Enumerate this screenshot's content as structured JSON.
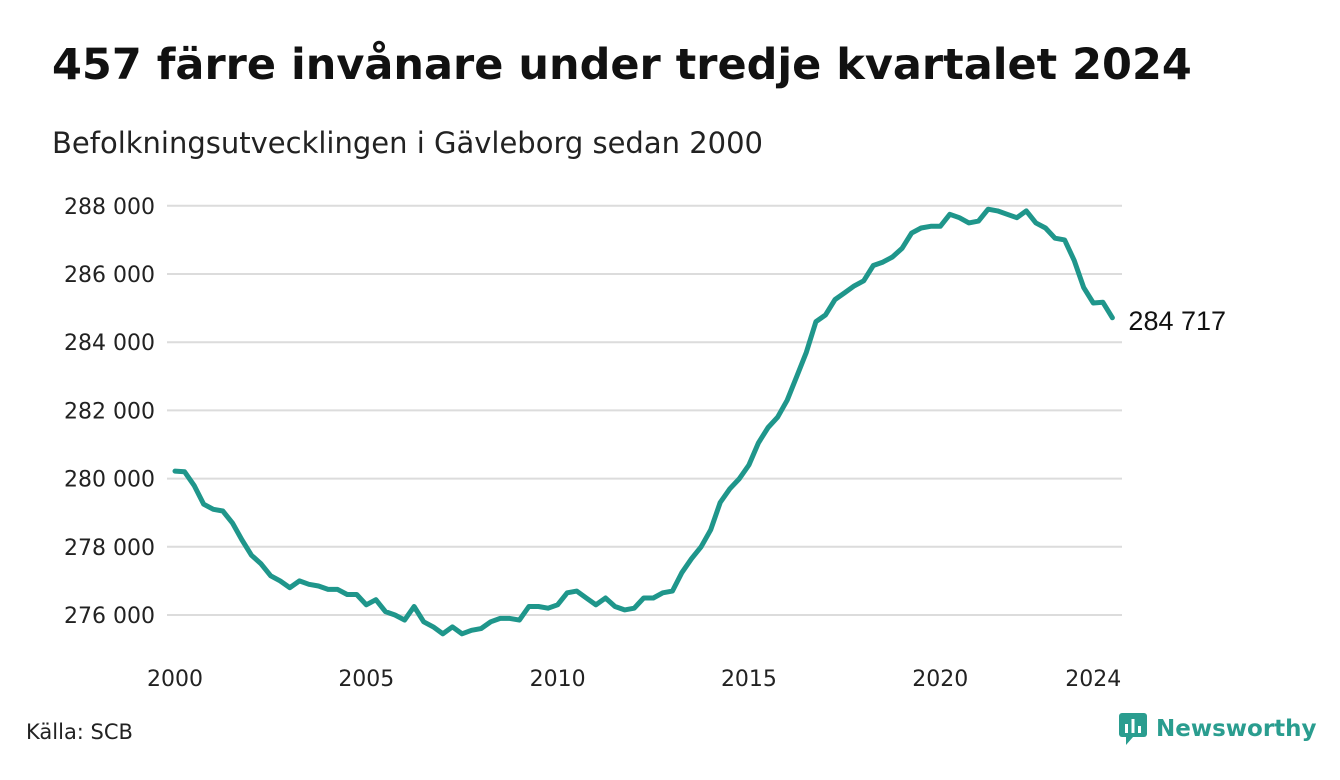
{
  "header": {
    "title": "457 färre invånare under tredje kvartalet 2024",
    "subtitle": "Befolkningsutvecklingen i Gävleborg sedan 2000"
  },
  "footer": {
    "source": "Källa: SCB",
    "brand": "Newsworthy",
    "brand_icon": "newsworthy-logo-icon"
  },
  "colors": {
    "line": "#1f968b",
    "grid": "#dcdcdc",
    "brand": "#2a9d8f"
  },
  "chart_data": {
    "type": "line",
    "xlabel": "",
    "ylabel": "",
    "xlim": [
      2000,
      2024.75
    ],
    "ylim": [
      275000,
      288000
    ],
    "grid": true,
    "x_ticks": [
      2000,
      2005,
      2010,
      2015,
      2020,
      2024
    ],
    "x_tick_labels": [
      "2000",
      "2005",
      "2010",
      "2015",
      "2020",
      "2024"
    ],
    "y_ticks": [
      276000,
      278000,
      280000,
      282000,
      284000,
      286000,
      288000
    ],
    "y_tick_labels": [
      "276 000",
      "278 000",
      "280 000",
      "282 000",
      "284 000",
      "286 000",
      "288 000"
    ],
    "end_label": "284 717",
    "series": [
      {
        "x_start": 2000.0,
        "x_step": 0.25,
        "values": [
          280220,
          280200,
          279800,
          279250,
          279100,
          279050,
          278700,
          278200,
          277750,
          277500,
          277150,
          277000,
          276800,
          277000,
          276900,
          276850,
          276750,
          276750,
          276600,
          276600,
          276300,
          276450,
          276100,
          276000,
          275850,
          276250,
          275800,
          275650,
          275450,
          275650,
          275450,
          275550,
          275600,
          275800,
          275900,
          275900,
          275850,
          276250,
          276250,
          276200,
          276300,
          276650,
          276700,
          276500,
          276300,
          276500,
          276250,
          276150,
          276200,
          276500,
          276500,
          276650,
          276700,
          277250,
          277650,
          278000,
          278500,
          279300,
          279700,
          280000,
          280400,
          281050,
          281500,
          281800,
          282300,
          283000,
          283700,
          284600,
          284800,
          285250,
          285450,
          285650,
          285800,
          286250,
          286350,
          286500,
          286750,
          287200,
          287350,
          287400,
          287400,
          287750,
          287650,
          287500,
          287550,
          287900,
          287850,
          287750,
          287650,
          287850,
          287500,
          287350,
          287050,
          287000,
          286400,
          285600,
          285150,
          285170,
          284717
        ]
      }
    ]
  }
}
